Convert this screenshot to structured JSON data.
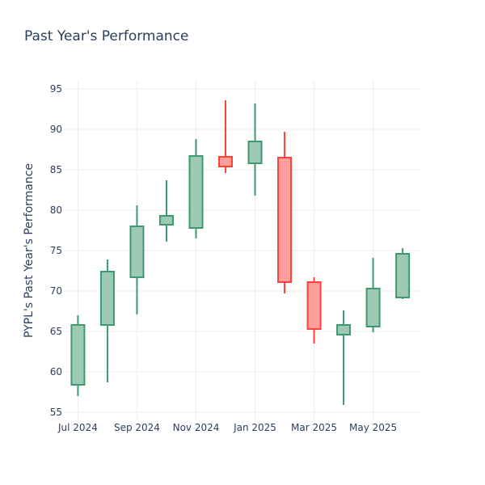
{
  "chart_data": {
    "type": "candlestick",
    "title": "Past Year's Performance",
    "xlabel": "",
    "ylabel": "PYPL's Past Year's Performance",
    "ylim": [
      54,
      96
    ],
    "yticks": [
      55,
      60,
      65,
      70,
      75,
      80,
      85,
      90,
      95
    ],
    "xlim": [
      -0.45,
      11.6
    ],
    "xticks": [
      {
        "label": "Jul 2024",
        "x": 0
      },
      {
        "label": "Sep 2024",
        "x": 2
      },
      {
        "label": "Nov 2024",
        "x": 4
      },
      {
        "label": "Jan 2025",
        "x": 6
      },
      {
        "label": "Mar 2025",
        "x": 8
      },
      {
        "label": "May 2025",
        "x": 10
      }
    ],
    "grid": true,
    "colors": {
      "increasing_line": "#3d9970",
      "increasing_fill": "#9ecab5",
      "decreasing_line": "#ff4136",
      "decreasing_fill": "#ff9f9b"
    },
    "candles": [
      {
        "x": 0,
        "open": 58.4,
        "high": 67.0,
        "low": 57.0,
        "close": 65.8
      },
      {
        "x": 1,
        "open": 65.8,
        "high": 73.9,
        "low": 58.7,
        "close": 72.4
      },
      {
        "x": 2,
        "open": 71.7,
        "high": 80.6,
        "low": 67.1,
        "close": 78.0
      },
      {
        "x": 3,
        "open": 78.2,
        "high": 83.7,
        "low": 76.1,
        "close": 79.3
      },
      {
        "x": 4,
        "open": 77.8,
        "high": 88.8,
        "low": 76.5,
        "close": 86.7
      },
      {
        "x": 5,
        "open": 86.6,
        "high": 93.6,
        "low": 84.6,
        "close": 85.4
      },
      {
        "x": 6,
        "open": 85.8,
        "high": 93.2,
        "low": 81.8,
        "close": 88.5
      },
      {
        "x": 7,
        "open": 86.5,
        "high": 89.7,
        "low": 69.7,
        "close": 71.1
      },
      {
        "x": 8,
        "open": 71.1,
        "high": 71.7,
        "low": 63.5,
        "close": 65.3
      },
      {
        "x": 9,
        "open": 64.6,
        "high": 67.6,
        "low": 55.9,
        "close": 65.8
      },
      {
        "x": 10,
        "open": 65.6,
        "high": 74.1,
        "low": 64.9,
        "close": 70.3
      },
      {
        "x": 11,
        "open": 69.2,
        "high": 75.3,
        "low": 69.0,
        "close": 74.6
      }
    ]
  }
}
